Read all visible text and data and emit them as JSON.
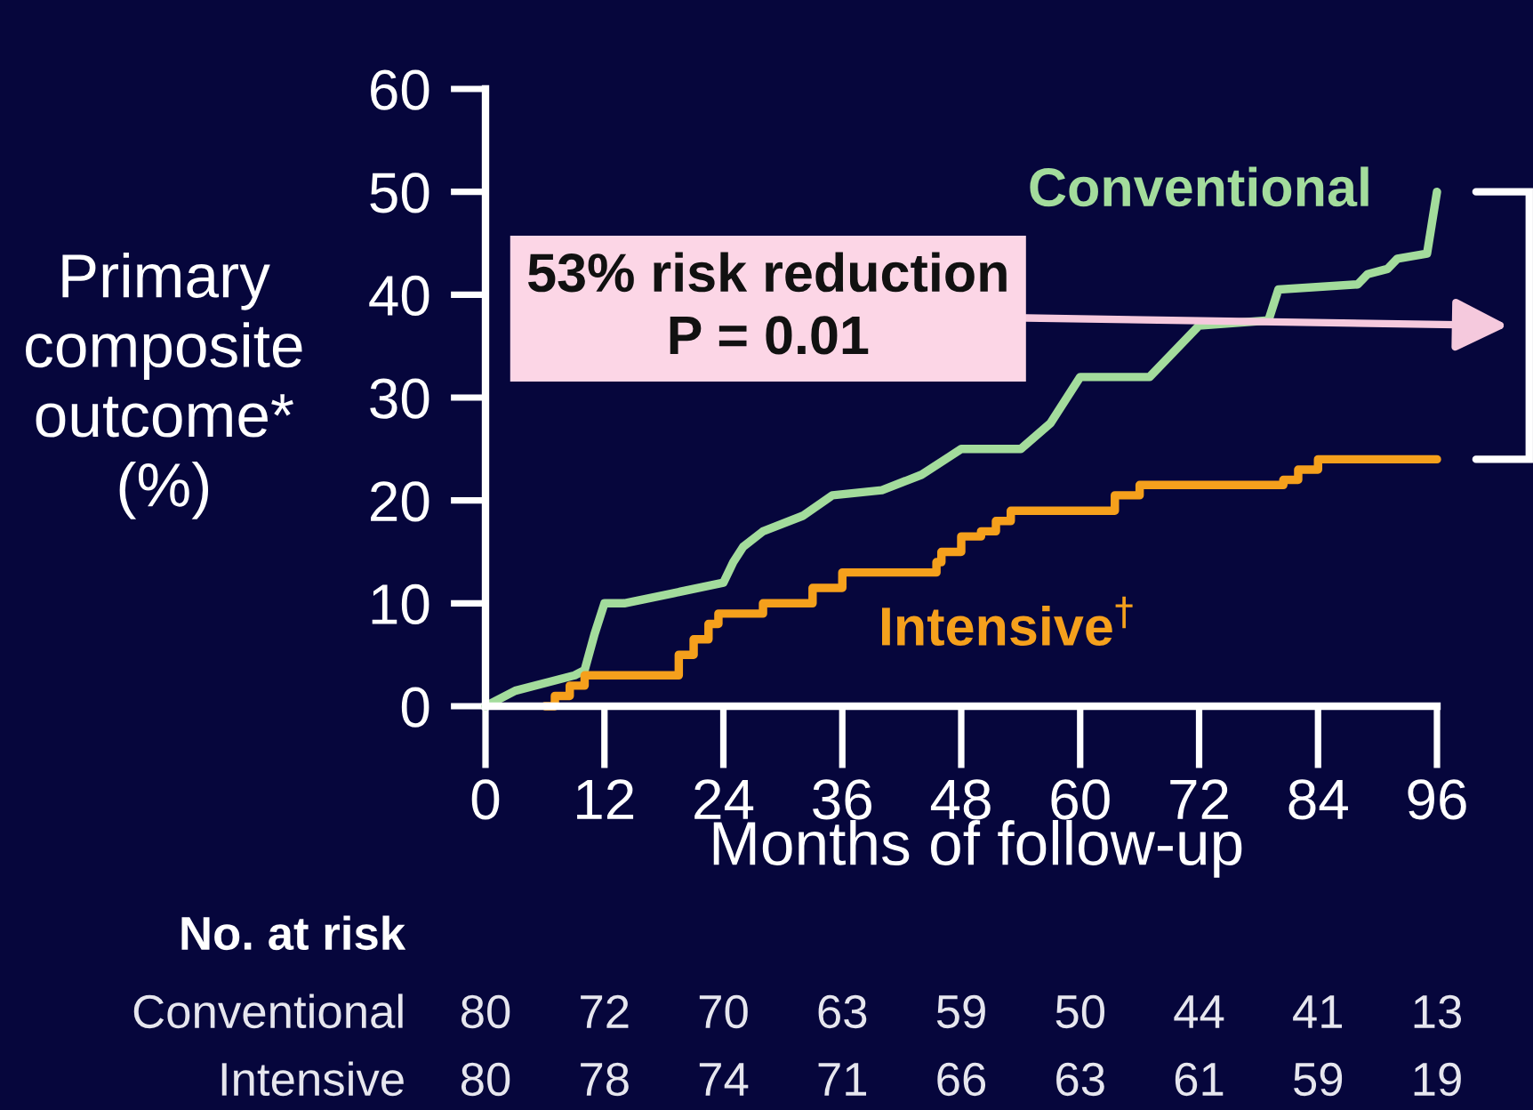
{
  "chart_data": [
    {
      "type": "line",
      "xlabel": "Months of follow-up",
      "ylabel": "Primary\ncomposite\noutcome*\n(%)",
      "annotations": [
        "53% risk reduction\nP = 0.01"
      ],
      "series": [
        {
          "name": "Conventional",
          "color": "#a3dc9c",
          "type": "line",
          "x": [
            0,
            3,
            9,
            10,
            11,
            12,
            14,
            19,
            24,
            25,
            26,
            28,
            32,
            35,
            40,
            44,
            48,
            54,
            57,
            60,
            67,
            72,
            79,
            80,
            88,
            89,
            91,
            92,
            95,
            95.5,
            96
          ],
          "values": [
            0,
            1.5,
            3,
            3.5,
            7,
            10,
            10,
            11,
            12,
            14,
            15.5,
            17,
            18.5,
            20.5,
            21,
            22.5,
            25,
            25,
            27.5,
            32,
            32,
            37,
            37.5,
            40.5,
            41,
            42,
            42.5,
            43.5,
            44,
            47,
            50
          ]
        },
        {
          "name": "Intensive$^{†}$",
          "color": "#f5a01c",
          "type": "step",
          "x": [
            6,
            7,
            8.5,
            10,
            19.5,
            21,
            22.5,
            23.5,
            28,
            33,
            36,
            45.5,
            46,
            48,
            50,
            51.5,
            53,
            63.5,
            66,
            80.5,
            82,
            84,
            96
          ],
          "values": [
            0,
            1,
            2,
            3,
            5,
            6.5,
            8,
            9,
            10,
            11.5,
            13,
            14,
            15,
            16.5,
            17,
            18,
            19,
            20.5,
            21.5,
            22,
            23,
            24,
            24
          ]
        }
      ],
      "xlim": [
        0,
        96
      ],
      "ylim": [
        0,
        60
      ],
      "xticks": [
        0,
        12,
        24,
        36,
        48,
        60,
        72,
        84,
        96
      ],
      "yticks": [
        0,
        10,
        20,
        30,
        40,
        50,
        60
      ],
      "legend": false
    },
    {
      "type": "other",
      "title": "No. at risk"
    },
    {
      "type": "other",
      "title": "Conventional",
      "annotations": [
        "80",
        "72",
        "70",
        "63",
        "59",
        "50",
        "44",
        "41",
        "13"
      ]
    },
    {
      "type": "other",
      "title": "Intensive",
      "annotations": [
        "80",
        "78",
        "74",
        "71",
        "66",
        "63",
        "61",
        "59",
        "19"
      ]
    }
  ]
}
